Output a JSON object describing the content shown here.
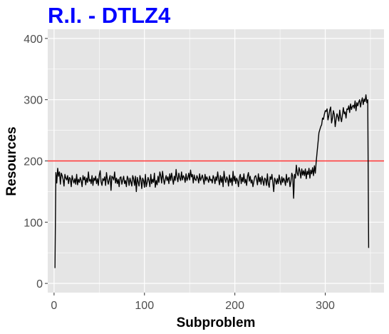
{
  "chart_data": {
    "type": "line",
    "title": "R.I. - DTLZ4",
    "xlabel": "Subproblem",
    "ylabel": "Resources",
    "xlim": [
      -7,
      365
    ],
    "ylim": [
      -15,
      415
    ],
    "xticks": [
      0,
      100,
      200,
      300
    ],
    "yticks": [
      0,
      100,
      200,
      300,
      400
    ],
    "grid": true,
    "reference_line": {
      "y": 200,
      "color": "#ff3333"
    },
    "colors": {
      "title": "#0000ff",
      "panel": "#e5e5e5",
      "grid": "#ffffff",
      "series": "#000000",
      "text": "#000000",
      "tick_text": "#4d4d4d"
    },
    "series": [
      {
        "x_start": 1,
        "values": [
          25,
          181,
          164,
          188,
          175,
          182,
          162,
          180,
          176,
          170,
          159,
          178,
          172,
          169,
          176,
          163,
          173,
          171,
          158,
          176,
          169,
          164,
          171,
          162,
          178,
          161,
          170,
          165,
          173,
          168,
          158,
          176,
          169,
          174,
          161,
          172,
          165,
          182,
          167,
          170,
          163,
          176,
          160,
          172,
          168,
          175,
          163,
          171,
          160,
          177,
          184,
          166,
          160,
          171,
          168,
          174,
          160,
          181,
          169,
          162,
          170,
          176,
          152,
          175,
          173,
          169,
          182,
          164,
          172,
          163,
          170,
          158,
          173,
          174,
          162,
          169,
          175,
          163,
          168,
          158,
          175,
          171,
          160,
          172,
          166,
          159,
          176,
          171,
          160,
          175,
          150,
          173,
          166,
          159,
          176,
          170,
          155,
          172,
          168,
          157,
          178,
          158,
          165,
          173,
          168,
          158,
          178,
          163,
          170,
          165,
          180,
          157,
          168,
          161,
          175,
          165,
          182,
          176,
          164,
          183,
          171,
          162,
          170,
          176,
          168,
          174,
          163,
          179,
          168,
          180,
          171,
          162,
          175,
          168,
          186,
          173,
          166,
          180,
          172,
          168,
          182,
          169,
          176,
          173,
          165,
          179,
          168,
          172,
          180,
          169,
          185,
          174,
          178,
          164,
          177,
          170,
          168,
          176,
          172,
          164,
          179,
          168,
          172,
          177,
          170,
          162,
          178,
          168,
          174,
          170,
          165,
          175,
          168,
          170,
          164,
          176,
          172,
          163,
          174,
          168,
          182,
          170,
          161,
          176,
          165,
          174,
          158,
          183,
          171,
          165,
          174,
          170,
          159,
          177,
          165,
          172,
          160,
          183,
          167,
          175,
          163,
          172,
          168,
          158,
          173,
          178,
          163,
          173,
          166,
          179,
          164,
          170,
          160,
          175,
          181,
          167,
          175,
          164,
          169,
          158,
          166,
          174,
          176,
          170,
          161,
          179,
          166,
          173,
          162,
          175,
          168,
          160,
          172,
          170,
          160,
          179,
          163,
          157,
          174,
          170,
          178,
          165,
          150,
          172,
          168,
          162,
          171,
          163,
          177,
          168,
          161,
          174,
          165,
          172,
          168,
          160,
          178,
          165,
          171,
          173,
          158,
          166,
          180,
          175,
          139,
          178,
          172,
          193,
          180,
          176,
          189,
          183,
          172,
          187,
          177,
          184,
          176,
          187,
          171,
          183,
          178,
          188,
          172,
          185,
          179,
          189,
          176,
          192,
          180,
          199,
          215,
          230,
          246,
          251,
          256,
          259,
          270,
          268,
          276,
          282,
          281,
          285,
          267,
          274,
          283,
          288,
          262,
          270,
          282,
          276,
          256,
          268,
          277,
          272,
          265,
          283,
          271,
          264,
          275,
          287,
          277,
          280,
          270,
          285,
          284,
          290,
          279,
          293,
          284,
          289,
          291,
          286,
          298,
          282,
          295,
          290,
          296,
          300,
          288,
          297,
          303,
          292,
          301,
          297,
          308,
          295,
          300,
          58
        ]
      }
    ]
  }
}
